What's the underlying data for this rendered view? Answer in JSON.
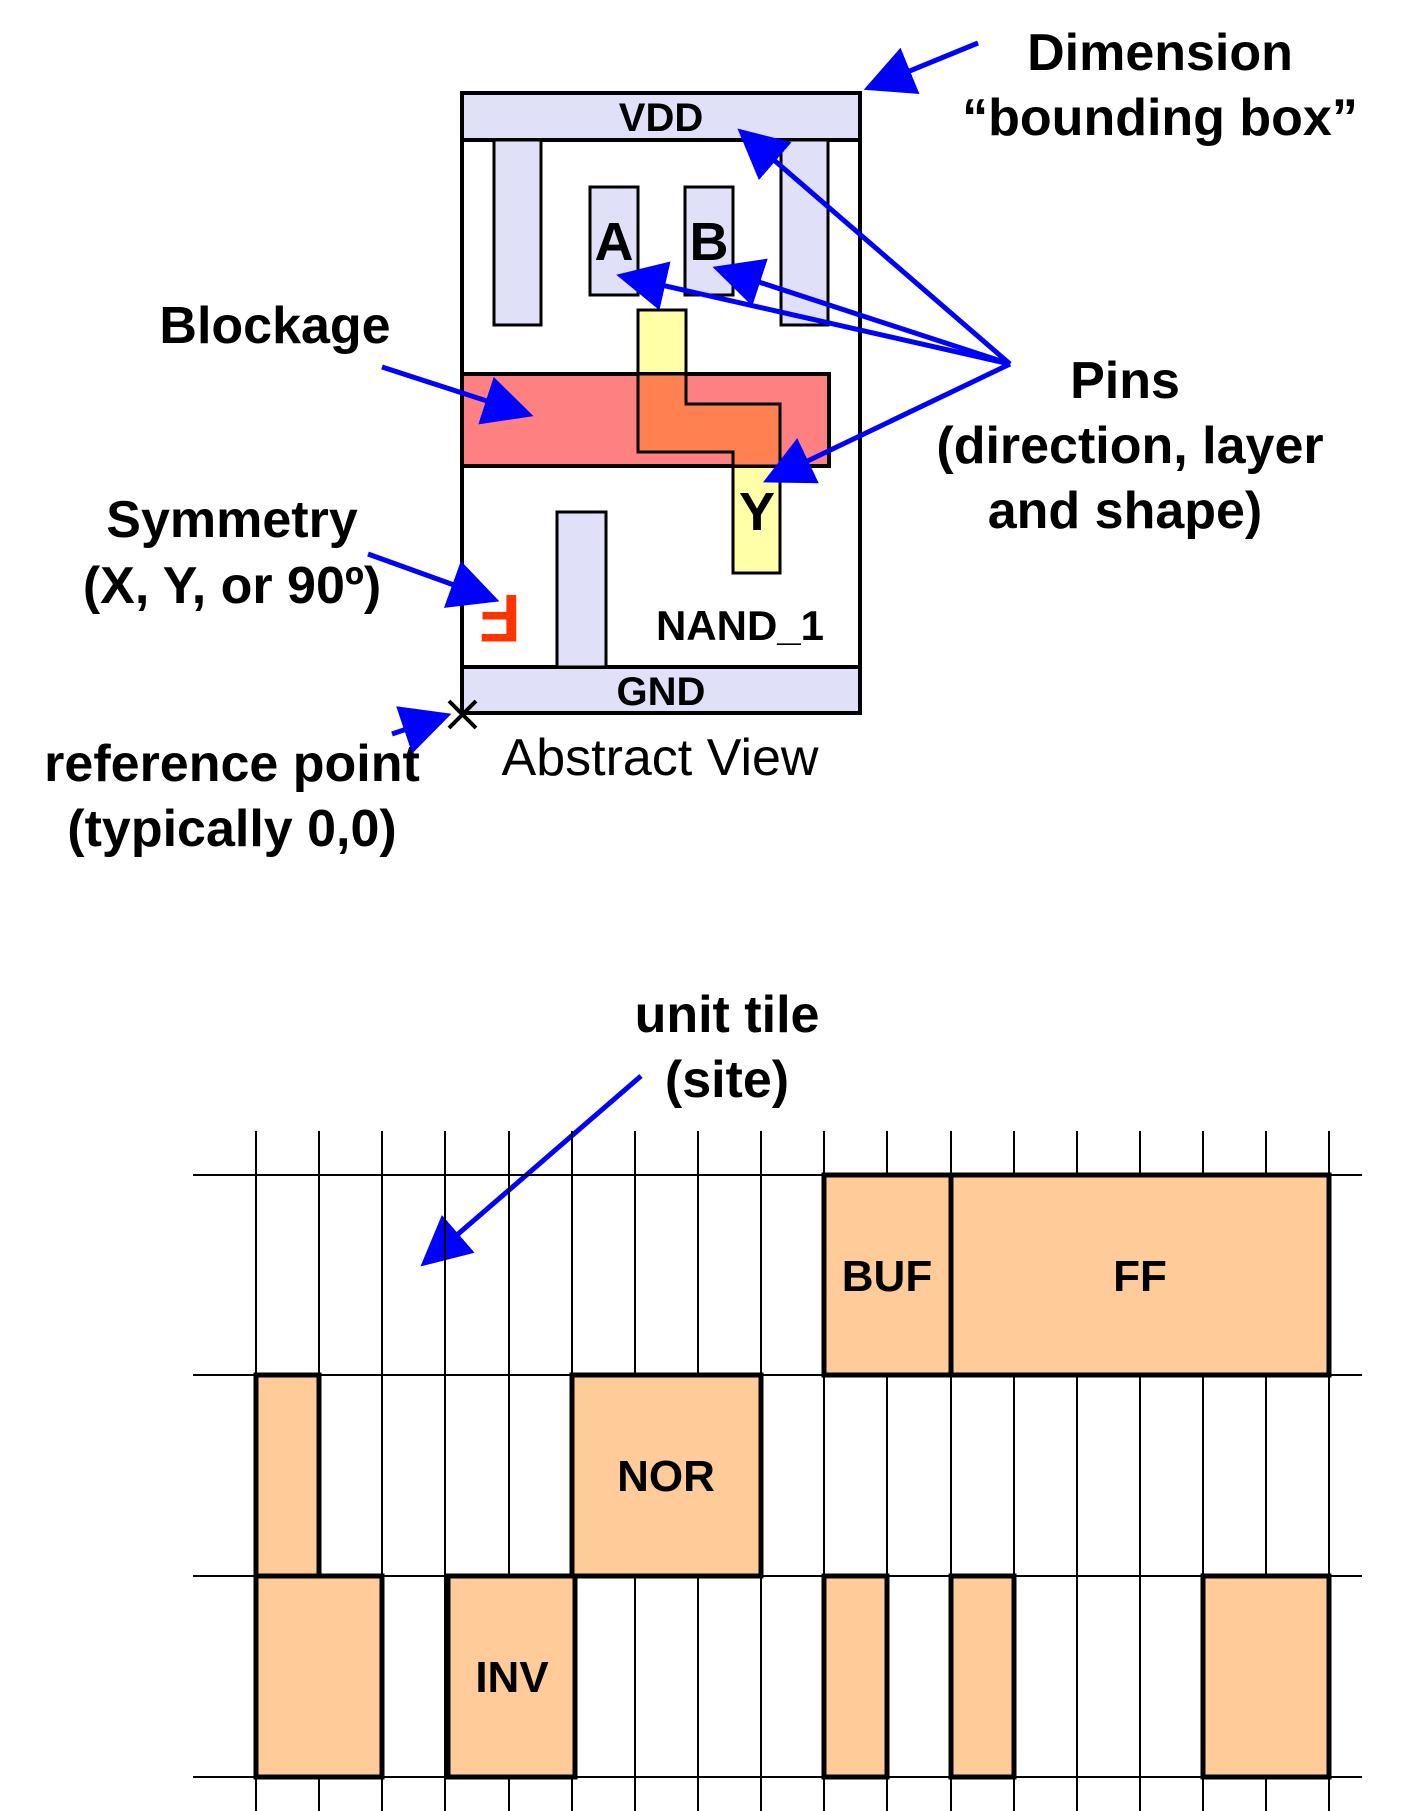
{
  "abstract_view": {
    "caption": "Abstract View",
    "cell_name": "NAND_1",
    "rails": {
      "top": "VDD",
      "bottom": "GND"
    },
    "pins": [
      "A",
      "B",
      "Y"
    ],
    "symmetry_glyph": "F"
  },
  "annotations": {
    "dimension_line1": "Dimension",
    "dimension_line2": "“bounding box”",
    "blockage": "Blockage",
    "pins_line1": "Pins",
    "pins_line2": "(direction, layer",
    "pins_line3": "and shape)",
    "symmetry_line1": "Symmetry",
    "symmetry_line2": "(X, Y, or 90º)",
    "reference_line1": "reference point",
    "reference_line2": "(typically 0,0)"
  },
  "placement_grid": {
    "unit_tile_line1": "unit tile",
    "unit_tile_line2": "(site)",
    "cells": [
      {
        "row": 1,
        "label": "BUF"
      },
      {
        "row": 1,
        "label": "FF"
      },
      {
        "row": 2,
        "label": ""
      },
      {
        "row": 2,
        "label": "NOR"
      },
      {
        "row": 3,
        "label": ""
      },
      {
        "row": 3,
        "label": "INV"
      },
      {
        "row": 3,
        "label": ""
      },
      {
        "row": 3,
        "label": ""
      },
      {
        "row": 3,
        "label": ""
      }
    ]
  },
  "colors": {
    "pin_fill": "#e0e0f8",
    "yellow_pin": "#ffffa8",
    "blockage_fill": "#ff8080",
    "overlap_fill": "#ff8050",
    "cell_fill": "#ffcc99",
    "arrow": "#0000ff",
    "symmetry": "#ff3300"
  }
}
